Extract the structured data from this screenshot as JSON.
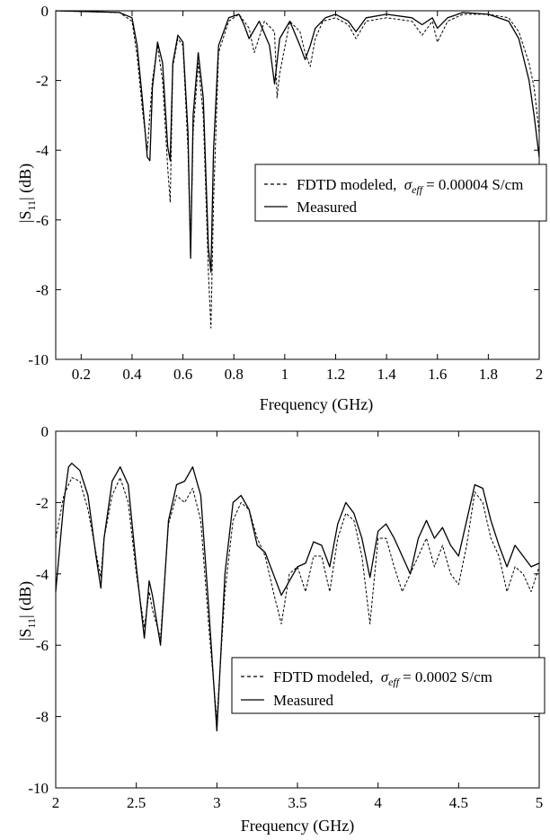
{
  "chart_data": [
    {
      "type": "line",
      "xlabel": "Frequency (GHz)",
      "ylabel": "|S11| (dB)",
      "xlim": [
        0.1,
        2.0
      ],
      "ylim": [
        -10,
        0
      ],
      "xticks": [
        "0.2",
        "0.4",
        "0.6",
        "0.8",
        "1",
        "1.2",
        "1.4",
        "1.6",
        "1.8",
        "2"
      ],
      "yticks": [
        "0",
        "-2",
        "-4",
        "-6",
        "-8",
        "-10"
      ],
      "grid": false,
      "legend_position": "middle-right",
      "series": [
        {
          "name": "FDTD modeled, σeff = 0.00004 S/cm",
          "style": "dashed",
          "x": [
            0.1,
            0.35,
            0.4,
            0.42,
            0.44,
            0.46,
            0.48,
            0.5,
            0.52,
            0.54,
            0.55,
            0.56,
            0.58,
            0.6,
            0.62,
            0.63,
            0.64,
            0.66,
            0.68,
            0.7,
            0.71,
            0.72,
            0.74,
            0.78,
            0.82,
            0.86,
            0.88,
            0.92,
            0.96,
            0.97,
            0.98,
            1.02,
            1.06,
            1.08,
            1.1,
            1.12,
            1.15,
            1.2,
            1.25,
            1.28,
            1.32,
            1.4,
            1.5,
            1.54,
            1.58,
            1.6,
            1.64,
            1.7,
            1.8,
            1.88,
            1.92,
            1.96,
            1.98,
            2.0
          ],
          "y": [
            0.0,
            -0.05,
            -0.3,
            -1.3,
            -2.8,
            -4.0,
            -2.0,
            -1.0,
            -2.0,
            -4.5,
            -5.5,
            -1.6,
            -0.8,
            -1.0,
            -4.0,
            -6.9,
            -3.5,
            -1.5,
            -3.0,
            -7.5,
            -9.1,
            -5.5,
            -1.2,
            -0.3,
            -0.1,
            -0.5,
            -1.2,
            -0.3,
            -0.6,
            -2.5,
            -1.8,
            -0.3,
            -0.6,
            -1.2,
            -1.6,
            -0.8,
            -0.3,
            -0.2,
            -0.4,
            -0.8,
            -0.3,
            -0.2,
            -0.3,
            -0.7,
            -0.3,
            -0.9,
            -0.3,
            -0.1,
            -0.1,
            -0.2,
            -0.6,
            -1.5,
            -2.2,
            -3.5
          ]
        },
        {
          "name": "Measured",
          "style": "solid",
          "x": [
            0.1,
            0.35,
            0.4,
            0.42,
            0.44,
            0.46,
            0.47,
            0.48,
            0.5,
            0.52,
            0.54,
            0.55,
            0.56,
            0.58,
            0.6,
            0.62,
            0.63,
            0.64,
            0.66,
            0.68,
            0.7,
            0.71,
            0.72,
            0.74,
            0.78,
            0.82,
            0.84,
            0.86,
            0.9,
            0.94,
            0.96,
            0.98,
            1.02,
            1.06,
            1.08,
            1.1,
            1.12,
            1.16,
            1.2,
            1.25,
            1.28,
            1.32,
            1.4,
            1.5,
            1.54,
            1.58,
            1.6,
            1.64,
            1.7,
            1.8,
            1.88,
            1.92,
            1.96,
            1.98,
            2.0
          ],
          "y": [
            0.0,
            -0.05,
            -0.2,
            -1.0,
            -2.5,
            -4.2,
            -4.3,
            -2.2,
            -0.9,
            -1.5,
            -3.9,
            -4.3,
            -1.5,
            -0.7,
            -0.9,
            -3.5,
            -7.1,
            -3.0,
            -1.2,
            -2.5,
            -6.8,
            -7.5,
            -4.0,
            -1.0,
            -0.2,
            -0.1,
            -0.4,
            -0.8,
            -0.3,
            -1.0,
            -2.1,
            -0.8,
            -0.3,
            -1.0,
            -1.4,
            -1.0,
            -0.5,
            -0.2,
            -0.1,
            -0.3,
            -0.6,
            -0.2,
            -0.1,
            -0.2,
            -0.4,
            -0.2,
            -0.5,
            -0.2,
            -0.05,
            -0.1,
            -0.3,
            -0.8,
            -2.0,
            -3.0,
            -4.2
          ]
        }
      ]
    },
    {
      "type": "line",
      "xlabel": "Frequency (GHz)",
      "ylabel": "|S11| (dB)",
      "xlim": [
        2.0,
        5.0
      ],
      "ylim": [
        -10,
        0
      ],
      "xticks": [
        "2",
        "2.5",
        "3",
        "3.5",
        "4",
        "4.5",
        "5"
      ],
      "yticks": [
        "0",
        "-2",
        "-4",
        "-6",
        "-8",
        "-10"
      ],
      "grid": false,
      "legend_position": "bottom-right",
      "series": [
        {
          "name": "FDTD modeled, σeff = 0.0002 S/cm",
          "style": "dashed",
          "x": [
            2.0,
            2.05,
            2.1,
            2.15,
            2.2,
            2.25,
            2.28,
            2.3,
            2.35,
            2.4,
            2.45,
            2.5,
            2.55,
            2.58,
            2.6,
            2.65,
            2.7,
            2.75,
            2.8,
            2.85,
            2.9,
            2.95,
            3.0,
            3.05,
            3.1,
            3.15,
            3.2,
            3.25,
            3.3,
            3.35,
            3.4,
            3.45,
            3.5,
            3.55,
            3.6,
            3.65,
            3.7,
            3.75,
            3.8,
            3.85,
            3.9,
            3.95,
            4.0,
            4.05,
            4.1,
            4.15,
            4.2,
            4.25,
            4.3,
            4.35,
            4.4,
            4.45,
            4.5,
            4.55,
            4.6,
            4.65,
            4.7,
            4.75,
            4.8,
            4.85,
            4.9,
            4.95,
            5.0
          ],
          "y": [
            -3.0,
            -1.8,
            -1.3,
            -1.4,
            -2.2,
            -3.4,
            -4.1,
            -3.0,
            -1.8,
            -1.3,
            -2.0,
            -4.0,
            -5.5,
            -4.5,
            -5.0,
            -5.8,
            -2.6,
            -1.8,
            -2.0,
            -1.6,
            -2.5,
            -5.5,
            -8.1,
            -4.5,
            -2.5,
            -2.0,
            -2.2,
            -3.0,
            -3.5,
            -4.5,
            -5.4,
            -4.0,
            -3.8,
            -4.5,
            -3.5,
            -3.5,
            -4.5,
            -3.0,
            -2.3,
            -2.5,
            -3.5,
            -5.4,
            -3.0,
            -3.0,
            -3.8,
            -4.5,
            -4.0,
            -3.5,
            -3.0,
            -3.8,
            -3.2,
            -4.0,
            -4.3,
            -3.2,
            -1.7,
            -2.0,
            -3.0,
            -3.5,
            -4.5,
            -3.8,
            -4.0,
            -4.5,
            -3.8
          ]
        },
        {
          "name": "Measured",
          "style": "solid",
          "x": [
            2.0,
            2.05,
            2.08,
            2.1,
            2.15,
            2.2,
            2.25,
            2.28,
            2.3,
            2.35,
            2.4,
            2.45,
            2.5,
            2.55,
            2.58,
            2.6,
            2.65,
            2.7,
            2.75,
            2.8,
            2.85,
            2.9,
            2.95,
            3.0,
            3.05,
            3.1,
            3.15,
            3.2,
            3.25,
            3.3,
            3.35,
            3.4,
            3.45,
            3.5,
            3.55,
            3.6,
            3.65,
            3.7,
            3.75,
            3.8,
            3.85,
            3.9,
            3.95,
            4.0,
            4.05,
            4.1,
            4.15,
            4.2,
            4.25,
            4.3,
            4.35,
            4.4,
            4.45,
            4.5,
            4.55,
            4.6,
            4.65,
            4.7,
            4.75,
            4.8,
            4.85,
            4.9,
            4.95,
            5.0
          ],
          "y": [
            -4.5,
            -2.0,
            -1.0,
            -0.9,
            -1.1,
            -1.8,
            -3.5,
            -4.4,
            -3.0,
            -1.4,
            -1.0,
            -1.5,
            -3.8,
            -5.8,
            -4.2,
            -4.6,
            -6.0,
            -2.5,
            -1.5,
            -1.4,
            -1.0,
            -1.8,
            -5.0,
            -8.4,
            -4.0,
            -2.0,
            -1.8,
            -2.2,
            -3.2,
            -3.4,
            -4.0,
            -4.6,
            -4.2,
            -3.8,
            -3.7,
            -3.1,
            -3.2,
            -3.8,
            -2.6,
            -2.0,
            -2.3,
            -3.0,
            -4.1,
            -2.8,
            -2.6,
            -3.0,
            -3.5,
            -4.0,
            -3.0,
            -2.5,
            -3.0,
            -2.7,
            -3.2,
            -3.5,
            -2.5,
            -1.5,
            -1.6,
            -2.5,
            -3.2,
            -3.8,
            -3.2,
            -3.5,
            -3.8,
            -3.7
          ]
        }
      ]
    }
  ],
  "legends": [
    {
      "fdtd_label": "FDTD modeled,",
      "sigma_symbol": "σ",
      "sigma_sub": "eff",
      "sigma_value": "= 0.00004 S/cm",
      "measured_label": "Measured"
    },
    {
      "fdtd_label": "FDTD modeled,",
      "sigma_symbol": "σ",
      "sigma_sub": "eff",
      "sigma_value": "= 0.0002 S/cm",
      "measured_label": "Measured"
    }
  ],
  "ylabel_parts": {
    "prefix": "|S",
    "sub": "11",
    "suffix": "| (dB)"
  },
  "colors": {
    "line": "#000000",
    "background": "#ffffff"
  }
}
